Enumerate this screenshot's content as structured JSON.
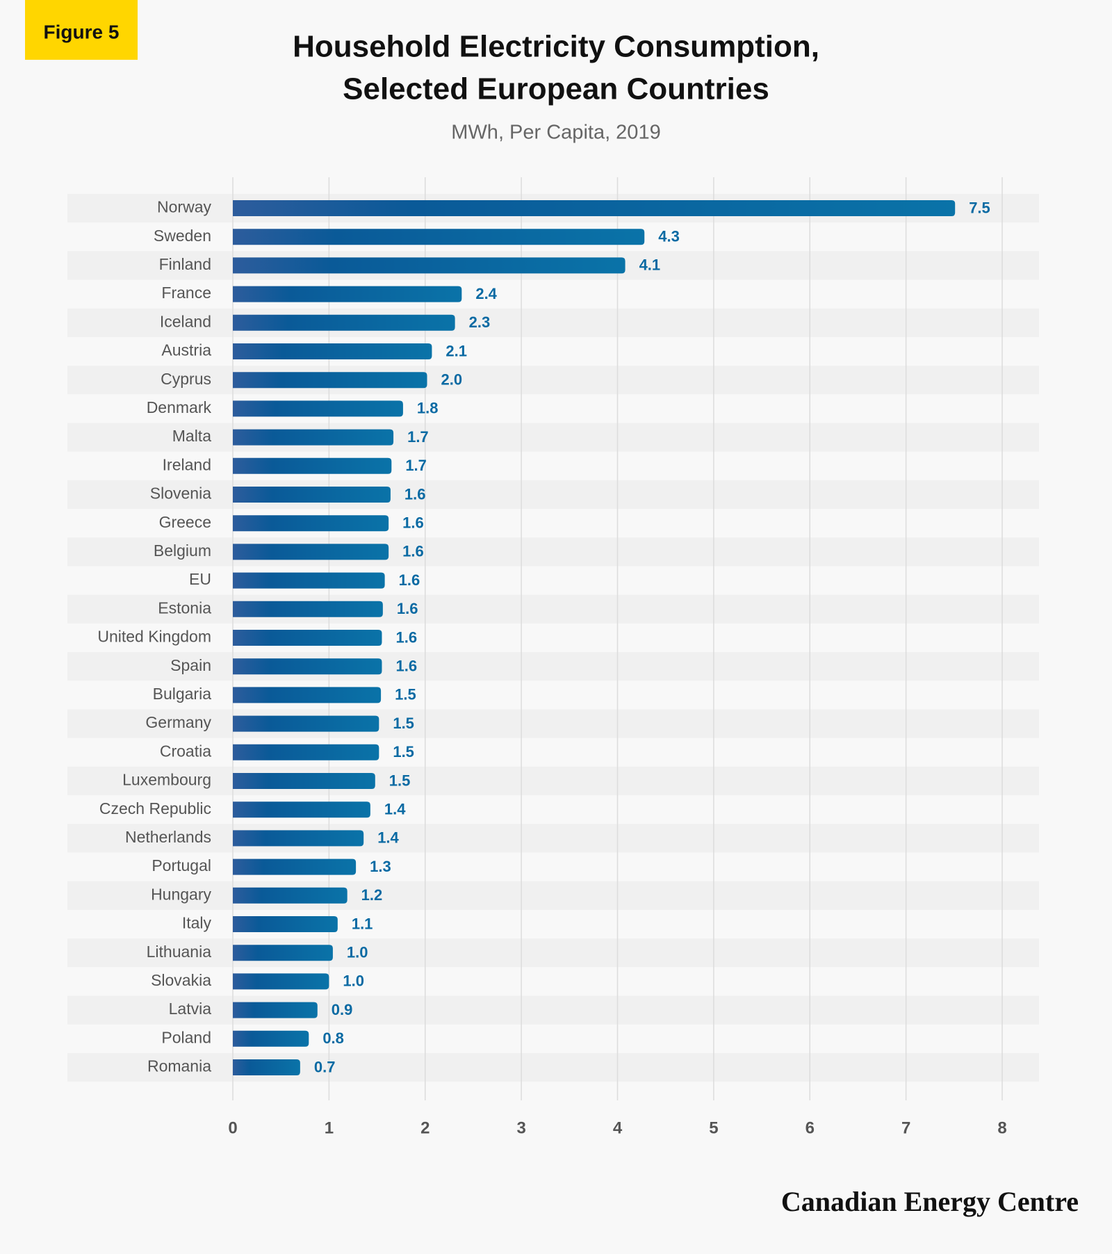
{
  "chart_data": {
    "type": "bar",
    "orientation": "horizontal",
    "badge": "Figure 5",
    "title": [
      "Household Electricity Consumption,",
      "Selected European Countries"
    ],
    "subtitle": "MWh, Per Capita, 2019",
    "source": "Canadian Energy Centre",
    "categories": [
      "Norway",
      "Sweden",
      "Finland",
      "France",
      "Iceland",
      "Austria",
      "Cyprus",
      "Denmark",
      "Malta",
      "Ireland",
      "Slovenia",
      "Greece",
      "Belgium",
      "EU",
      "Estonia",
      "United Kingdom",
      "Spain",
      "Bulgaria",
      "Germany",
      "Croatia",
      "Luxembourg",
      "Czech Republic",
      "Netherlands",
      "Portugal",
      "Hungary",
      "Italy",
      "Lithuania",
      "Slovakia",
      "Latvia",
      "Poland",
      "Romania"
    ],
    "values": [
      7.51,
      4.28,
      4.08,
      2.38,
      2.31,
      2.07,
      2.02,
      1.77,
      1.67,
      1.65,
      1.64,
      1.62,
      1.62,
      1.58,
      1.56,
      1.55,
      1.55,
      1.54,
      1.52,
      1.52,
      1.48,
      1.43,
      1.36,
      1.28,
      1.19,
      1.09,
      1.04,
      1.0,
      0.88,
      0.79,
      0.7
    ],
    "value_labels": [
      "7.5",
      "4.3",
      "4.1",
      "2.4",
      "2.3",
      "2.1",
      "2.0",
      "1.8",
      "1.7",
      "1.7",
      "1.6",
      "1.6",
      "1.6",
      "1.6",
      "1.6",
      "1.6",
      "1.6",
      "1.5",
      "1.5",
      "1.5",
      "1.5",
      "1.4",
      "1.4",
      "1.3",
      "1.2",
      "1.1",
      "1.0",
      "1.0",
      "0.9",
      "0.8",
      "0.7"
    ],
    "color": "#0a6aa3",
    "xlim": [
      0,
      8
    ],
    "xticks": [
      0,
      1,
      2,
      3,
      4,
      5,
      6,
      7,
      8
    ],
    "grid": true
  }
}
